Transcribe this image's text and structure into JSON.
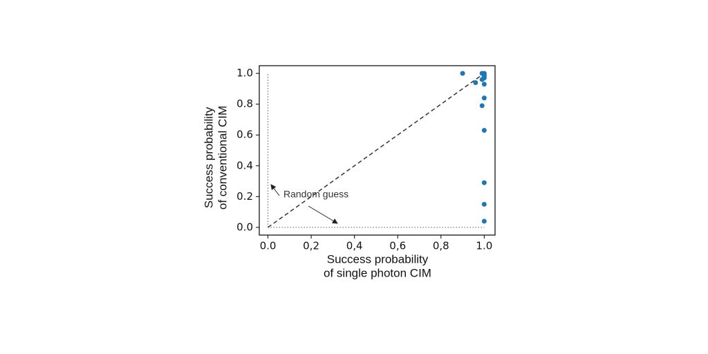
{
  "chart_data": {
    "type": "scatter",
    "xlabel": [
      "Success probability",
      "of single photon CIM"
    ],
    "ylabel": [
      "Success probability",
      "of conventional CIM"
    ],
    "annotation": "Random guess",
    "x": [
      0.9,
      0.96,
      0.99,
      1.0,
      1.0,
      1.0,
      1.0,
      0.99,
      1.0,
      1.0,
      0.99,
      1.0,
      1.0,
      1.0,
      1.0
    ],
    "y": [
      1.0,
      0.94,
      1.0,
      1.0,
      0.99,
      0.98,
      0.97,
      0.96,
      0.93,
      0.84,
      0.79,
      0.63,
      0.29,
      0.15,
      0.04
    ],
    "color": "#1f77b4",
    "lines": [
      {
        "x": [
          0,
          1
        ],
        "y": [
          0,
          1
        ],
        "style": "dashed"
      },
      {
        "x": [
          0,
          0
        ],
        "y": [
          0,
          1
        ],
        "style": "dotted"
      },
      {
        "x": [
          0,
          1
        ],
        "y": [
          0,
          0
        ],
        "style": "dotted"
      }
    ],
    "xlim": [
      -0.04,
      1.05
    ],
    "ylim": [
      -0.05,
      1.05
    ],
    "xticks": [
      {
        "value": 0,
        "label": "0.0"
      },
      {
        "value": 0.2,
        "label": "0,2"
      },
      {
        "value": 0.4,
        "label": "0,4"
      },
      {
        "value": 0.6,
        "label": "0,6"
      },
      {
        "value": 0.8,
        "label": "0,8"
      },
      {
        "value": 1,
        "label": "1.0"
      }
    ],
    "yticks": [
      {
        "value": 0,
        "label": "0.0"
      },
      0.2,
      0.4,
      0.6,
      0.8,
      {
        "value": 1,
        "label": "1.0"
      }
    ]
  }
}
